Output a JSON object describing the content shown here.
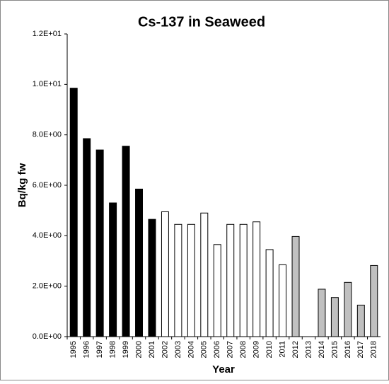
{
  "chart_data": {
    "type": "bar",
    "title": "Cs-137 in Seaweed",
    "x_label": "Year",
    "y_label": "Bq/kg fw",
    "categories": [
      "1995",
      "1996",
      "1997",
      "1998",
      "1999",
      "2000",
      "2001",
      "2002",
      "2003",
      "2004",
      "2005",
      "2006",
      "2007",
      "2008",
      "2009",
      "2010",
      "2011",
      "2012",
      "2013",
      "2014",
      "2015",
      "2016",
      "2017",
      "2018"
    ],
    "values": [
      9.85,
      7.85,
      7.4,
      5.3,
      7.55,
      5.85,
      4.65,
      4.95,
      4.45,
      4.45,
      4.9,
      3.65,
      4.45,
      4.45,
      4.55,
      3.45,
      2.85,
      3.97,
      null,
      1.88,
      1.55,
      2.15,
      1.25,
      2.82
    ],
    "colors": [
      "#000000",
      "#000000",
      "#000000",
      "#000000",
      "#000000",
      "#000000",
      "#000000",
      "#ffffff",
      "#ffffff",
      "#ffffff",
      "#ffffff",
      "#ffffff",
      "#ffffff",
      "#ffffff",
      "#ffffff",
      "#ffffff",
      "#ffffff",
      "#c0c0c0",
      "#c0c0c0",
      "#c0c0c0",
      "#c0c0c0",
      "#c0c0c0",
      "#c0c0c0",
      "#c0c0c0"
    ],
    "ylim": [
      0,
      12
    ],
    "yticks": [
      {
        "value": 0,
        "label": "0.0E+00"
      },
      {
        "value": 2,
        "label": "2.0E+00"
      },
      {
        "value": 4,
        "label": "4.0E+00"
      },
      {
        "value": 6,
        "label": "6.0E+00"
      },
      {
        "value": 8,
        "label": "8.0E+00"
      },
      {
        "value": 10,
        "label": "1.0E+01"
      },
      {
        "value": 12,
        "label": "1.2E+01"
      }
    ],
    "grid": false
  }
}
